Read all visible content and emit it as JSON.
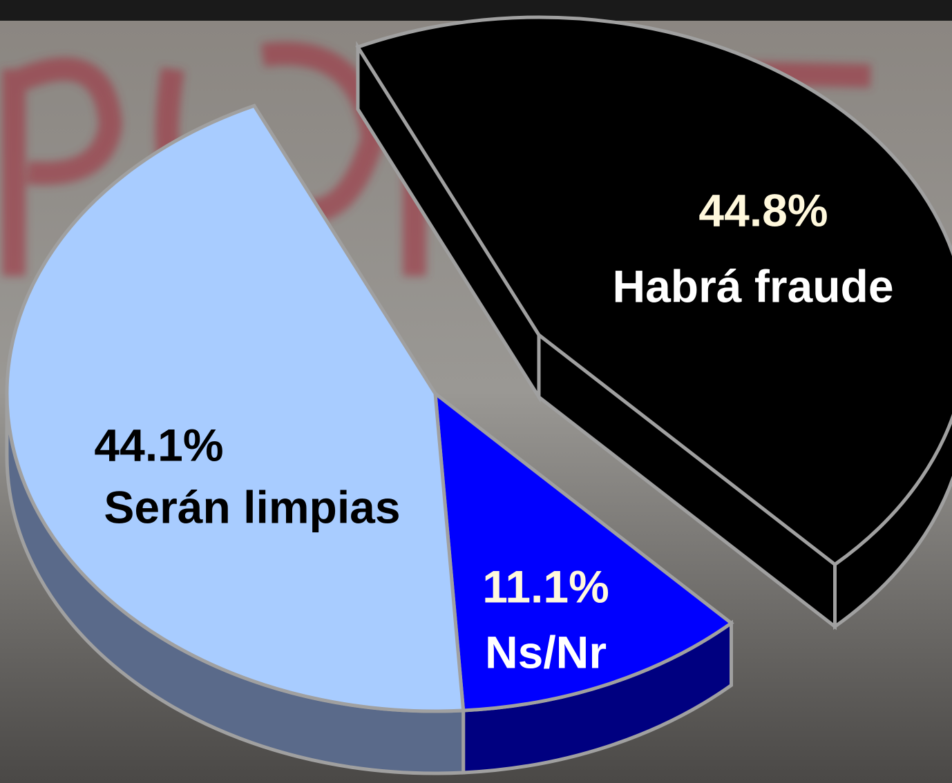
{
  "chart_data": {
    "type": "pie",
    "categories": [
      "Habrá fraude",
      "Ns/Nr",
      "Serán limpias"
    ],
    "values": [
      44.8,
      11.1,
      44.1
    ],
    "value_labels": [
      "44.8%",
      "11.1%",
      "44.1%"
    ],
    "colors": [
      "#000000",
      "#0000ff",
      "#a8ccff"
    ]
  }
}
